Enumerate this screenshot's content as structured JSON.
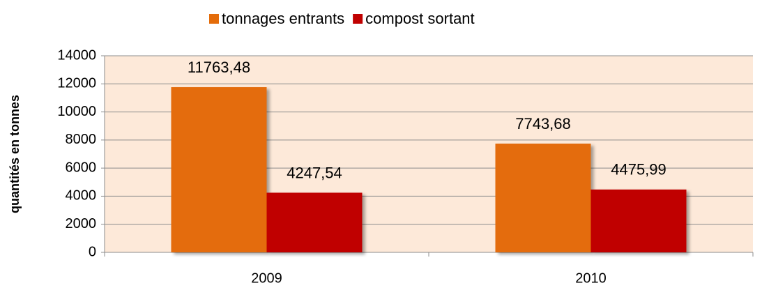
{
  "chart_data": {
    "type": "bar",
    "categories": [
      "2009",
      "2010"
    ],
    "series": [
      {
        "name": "tonnages entrants",
        "color": "#e46c0a",
        "values": [
          11763.48,
          7743.68
        ],
        "value_labels": [
          "11763,48",
          "7743,68"
        ]
      },
      {
        "name": "compost sortant",
        "color": "#c00000",
        "values": [
          4247.54,
          4475.99
        ],
        "value_labels": [
          "4247,54",
          "4475,99"
        ]
      }
    ],
    "y_label": "quantités en tonnes",
    "ylim": [
      0,
      14000
    ],
    "yticks": [
      0,
      2000,
      4000,
      6000,
      8000,
      10000,
      12000,
      14000
    ],
    "grid": true,
    "legend": "top",
    "plot_background": "#fde9d9"
  }
}
